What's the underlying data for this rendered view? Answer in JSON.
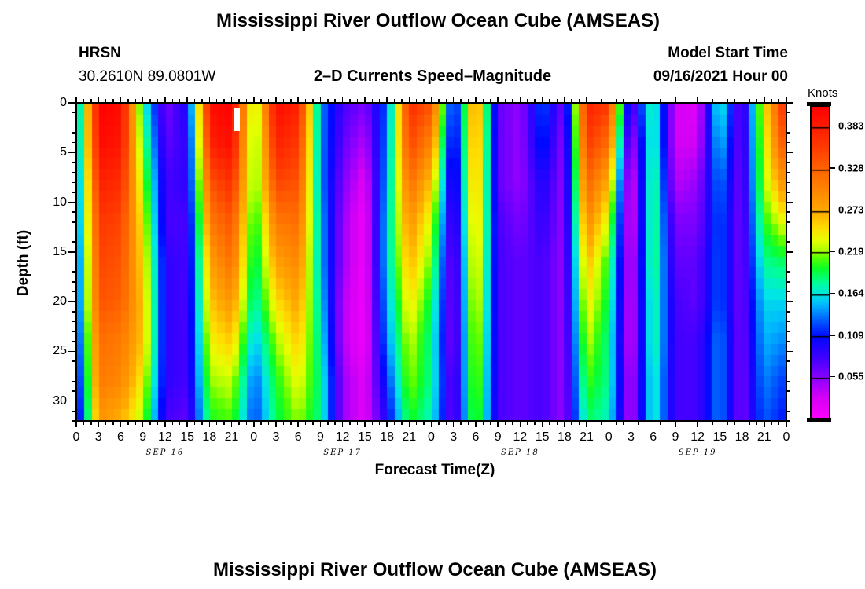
{
  "header": {
    "title": "Mississippi River Outflow Ocean Cube (AMSEAS)",
    "station_code": "HRSN",
    "station_coordinates": "30.2610N  89.0801W",
    "subtitle": "2–D Currents Speed–Magnitude",
    "model_start_label": "Model Start Time",
    "model_start_value": "09/16/2021 Hour 00"
  },
  "footer": {
    "next_panel_title": "Mississippi River Outflow Ocean Cube (AMSEAS)"
  },
  "x_axis": {
    "label": "Forecast Time(Z)",
    "hours_span": 96,
    "major_step_hours": 3,
    "minor_step_hours": 1,
    "hour_labels": [
      "0",
      "3",
      "6",
      "9",
      "12",
      "15",
      "18",
      "21",
      "0",
      "3",
      "6",
      "9",
      "12",
      "15",
      "18",
      "21",
      "0",
      "3",
      "6",
      "9",
      "12",
      "15",
      "18",
      "21",
      "0",
      "3",
      "6",
      "9",
      "12",
      "15",
      "18",
      "21",
      "0"
    ],
    "date_labels": [
      "SEP 16",
      "SEP 17",
      "SEP 18",
      "SEP 19"
    ]
  },
  "y_axis": {
    "label": "Depth (ft)",
    "tick_values": [
      0,
      5,
      10,
      15,
      20,
      25,
      30
    ],
    "minor_step_ft": 1,
    "max_depth_ft": 32
  },
  "colorbar": {
    "title": "Knots",
    "tick_labels": [
      "0.383",
      "0.328",
      "0.273",
      "0.219",
      "0.164",
      "0.109",
      "0.055"
    ],
    "tick_values": [
      0.383,
      0.328,
      0.273,
      0.219,
      0.164,
      0.109,
      0.055
    ],
    "vmin": 0,
    "vmax": 0.41,
    "stops": [
      [
        0.0,
        "#ff00ff"
      ],
      [
        0.03,
        "#d400f5"
      ],
      [
        0.055,
        "#8a00ff"
      ],
      [
        0.08,
        "#4400ff"
      ],
      [
        0.109,
        "#0008ff"
      ],
      [
        0.132,
        "#0064ff"
      ],
      [
        0.15,
        "#00b4ff"
      ],
      [
        0.164,
        "#00e6e6"
      ],
      [
        0.18,
        "#00ff96"
      ],
      [
        0.198,
        "#0aff28"
      ],
      [
        0.212,
        "#55ff00"
      ],
      [
        0.222,
        "#aaff00"
      ],
      [
        0.235,
        "#e6ff00"
      ],
      [
        0.252,
        "#ffdc00"
      ],
      [
        0.273,
        "#ffaa00"
      ],
      [
        0.3,
        "#ff8700"
      ],
      [
        0.328,
        "#ff6400"
      ],
      [
        0.36,
        "#ff3700"
      ],
      [
        0.41,
        "#ff0000"
      ]
    ]
  },
  "chart_data": {
    "type": "heatmap",
    "title": "2-D Currents Speed-Magnitude",
    "xlabel": "Forecast Time(Z)",
    "ylabel": "Depth (ft)",
    "unit": "Knots",
    "x_hours": [
      0,
      3,
      6,
      9,
      12,
      15,
      18,
      21,
      24,
      27,
      30,
      33,
      36,
      39,
      42,
      45,
      48,
      51,
      54,
      57,
      60,
      63,
      66,
      69,
      72,
      75,
      78,
      81,
      84,
      87,
      90,
      93,
      96
    ],
    "depths_ft": [
      0,
      4,
      8,
      12,
      16,
      20,
      24,
      28,
      32
    ],
    "values_knots": [
      [
        0.13,
        0.41,
        0.4,
        0.18,
        0.06,
        0.1,
        0.4,
        0.41,
        0.21,
        0.4,
        0.38,
        0.14,
        0.08,
        0.06,
        0.13,
        0.37,
        0.34,
        0.09,
        0.3,
        0.07,
        0.05,
        0.13,
        0.06,
        0.38,
        0.36,
        0.06,
        0.19,
        0.03,
        0.02,
        0.18,
        0.06,
        0.24,
        0.38
      ],
      [
        0.13,
        0.4,
        0.39,
        0.2,
        0.07,
        0.09,
        0.38,
        0.4,
        0.2,
        0.38,
        0.36,
        0.14,
        0.07,
        0.04,
        0.14,
        0.35,
        0.3,
        0.08,
        0.29,
        0.07,
        0.05,
        0.12,
        0.05,
        0.36,
        0.32,
        0.03,
        0.19,
        0.03,
        0.03,
        0.16,
        0.06,
        0.23,
        0.35
      ],
      [
        0.12,
        0.38,
        0.37,
        0.22,
        0.08,
        0.09,
        0.34,
        0.37,
        0.2,
        0.35,
        0.34,
        0.14,
        0.06,
        0.02,
        0.15,
        0.32,
        0.26,
        0.07,
        0.28,
        0.07,
        0.05,
        0.1,
        0.05,
        0.33,
        0.27,
        0.01,
        0.2,
        0.04,
        0.05,
        0.14,
        0.06,
        0.22,
        0.3
      ],
      [
        0.12,
        0.36,
        0.35,
        0.24,
        0.08,
        0.08,
        0.31,
        0.34,
        0.19,
        0.31,
        0.32,
        0.15,
        0.05,
        0.01,
        0.16,
        0.29,
        0.23,
        0.06,
        0.27,
        0.08,
        0.06,
        0.09,
        0.05,
        0.3,
        0.23,
        0.01,
        0.2,
        0.06,
        0.06,
        0.13,
        0.06,
        0.2,
        0.24
      ],
      [
        0.11,
        0.35,
        0.34,
        0.25,
        0.09,
        0.08,
        0.28,
        0.32,
        0.18,
        0.28,
        0.3,
        0.15,
        0.05,
        0.01,
        0.16,
        0.27,
        0.21,
        0.05,
        0.26,
        0.08,
        0.07,
        0.08,
        0.05,
        0.27,
        0.2,
        0.02,
        0.2,
        0.07,
        0.07,
        0.13,
        0.06,
        0.18,
        0.19
      ],
      [
        0.11,
        0.34,
        0.33,
        0.26,
        0.09,
        0.08,
        0.26,
        0.29,
        0.17,
        0.25,
        0.28,
        0.16,
        0.04,
        0.01,
        0.15,
        0.25,
        0.19,
        0.05,
        0.25,
        0.08,
        0.07,
        0.08,
        0.05,
        0.25,
        0.19,
        0.02,
        0.19,
        0.08,
        0.07,
        0.13,
        0.06,
        0.16,
        0.16
      ],
      [
        0.1,
        0.32,
        0.31,
        0.26,
        0.09,
        0.08,
        0.24,
        0.26,
        0.15,
        0.22,
        0.26,
        0.17,
        0.04,
        0.01,
        0.14,
        0.23,
        0.18,
        0.05,
        0.24,
        0.08,
        0.07,
        0.08,
        0.05,
        0.23,
        0.18,
        0.02,
        0.19,
        0.08,
        0.08,
        0.14,
        0.06,
        0.15,
        0.14
      ],
      [
        0.09,
        0.31,
        0.3,
        0.24,
        0.09,
        0.08,
        0.22,
        0.23,
        0.13,
        0.2,
        0.24,
        0.18,
        0.05,
        0.02,
        0.12,
        0.22,
        0.18,
        0.06,
        0.23,
        0.08,
        0.07,
        0.08,
        0.05,
        0.21,
        0.18,
        0.03,
        0.18,
        0.08,
        0.08,
        0.14,
        0.06,
        0.14,
        0.12
      ],
      [
        0.08,
        0.29,
        0.27,
        0.22,
        0.08,
        0.07,
        0.2,
        0.21,
        0.12,
        0.19,
        0.22,
        0.18,
        0.05,
        0.02,
        0.1,
        0.2,
        0.17,
        0.06,
        0.22,
        0.08,
        0.07,
        0.08,
        0.05,
        0.19,
        0.17,
        0.03,
        0.18,
        0.08,
        0.08,
        0.14,
        0.06,
        0.13,
        0.11
      ]
    ],
    "marker": {
      "hour_start": 21.4,
      "hour_end": 22.1,
      "depth_start_ft": 0.55,
      "depth_end_ft": 2.85,
      "color": "#ffffff"
    }
  }
}
